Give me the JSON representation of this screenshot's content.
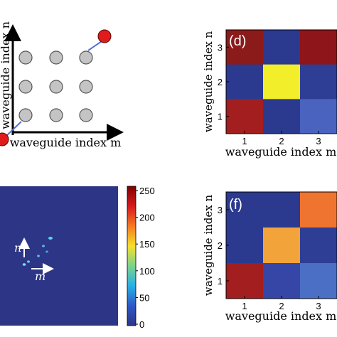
{
  "panel_c": {
    "y_axis_label": "waveguide index n",
    "x_axis_label": "waveguide index m",
    "grid_rows": 3,
    "grid_cols": 3,
    "circle_color": "#c4c4c4",
    "input_color": "#e01b1b",
    "coupling_color": "#5a6fd0"
  },
  "panel_d": {
    "label": "(d)",
    "ylabel": "waveguide index n",
    "xlabel": "waveguide index m",
    "yticks": [
      "3",
      "2",
      "1"
    ],
    "xticks": [
      "1",
      "2",
      "3"
    ],
    "cells": [
      [
        "#8b1a1a",
        "#2b3a8f",
        "#8e1519"
      ],
      [
        "#2b3a8f",
        "#f2ee2a",
        "#2e3e94"
      ],
      [
        "#a31e1e",
        "#2b3a8f",
        "#4a63bf"
      ]
    ]
  },
  "panel_e": {
    "n_label": "n",
    "m_label": "m",
    "background": "#2d3586",
    "colorbar": {
      "ticks": [
        "250",
        "200",
        "150",
        "100",
        "50",
        "0"
      ],
      "stops": [
        "#7f0000",
        "#d7191c",
        "#f57a22",
        "#f5e02a",
        "#7cd38c",
        "#27b0e6",
        "#2c58c8",
        "#2d3586"
      ]
    }
  },
  "panel_f": {
    "label": "(f)",
    "ylabel": "waveguide index n",
    "xlabel": "waveguide index m",
    "yticks": [
      "3",
      "2",
      "1"
    ],
    "xticks": [
      "1",
      "2",
      "3"
    ],
    "cells": [
      [
        "#2b3a8f",
        "#2b3a8f",
        "#ef7430"
      ],
      [
        "#2b3a8f",
        "#f2a33a",
        "#2e3e94"
      ],
      [
        "#a31e1e",
        "#3646a6",
        "#4a6fc4"
      ]
    ]
  }
}
